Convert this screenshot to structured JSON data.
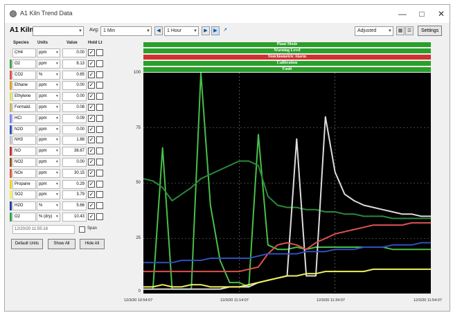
{
  "window": {
    "title": "A1 Kiln Trend Data"
  },
  "toolbar": {
    "kiln_name": "A1 Kiln",
    "avg_label": "Avg:",
    "avg_value": "1 Min",
    "range_value": "1 Hour",
    "scale_value": "Adjusted",
    "settings_label": "Settings"
  },
  "species_headers": {
    "species": "Species",
    "units": "Units",
    "value": "Value",
    "hold": "Hold Lt"
  },
  "species": [
    {
      "name": "CH4",
      "unit": "ppm",
      "value": "0.00",
      "color": "#e8e8e8",
      "checked": true
    },
    {
      "name": "O2",
      "unit": "ppm",
      "value": "8.13",
      "color": "#49a049",
      "checked": true
    },
    {
      "name": "CO2",
      "unit": "%",
      "value": "0.65",
      "color": "#e05050",
      "checked": true
    },
    {
      "name": "Ethane",
      "unit": "ppm",
      "value": "0.00",
      "color": "#e0a020",
      "checked": true
    },
    {
      "name": "Ethylene",
      "unit": "ppm",
      "value": "0.00",
      "color": "#e0e060",
      "checked": true
    },
    {
      "name": "Formald.",
      "unit": "ppm",
      "value": "0.08",
      "color": "#d0b060",
      "checked": true
    },
    {
      "name": "HCl",
      "unit": "ppm",
      "value": "0.09",
      "color": "#8080ff",
      "checked": true
    },
    {
      "name": "N2O",
      "unit": "ppm",
      "value": "0.00",
      "color": "#3050c0",
      "checked": true
    },
    {
      "name": "NH3",
      "unit": "ppm",
      "value": "1.88",
      "color": "#c0c0c0",
      "checked": true
    },
    {
      "name": "NO",
      "unit": "ppm",
      "value": "38.87",
      "color": "#c03030",
      "checked": true
    },
    {
      "name": "NO2",
      "unit": "ppm",
      "value": "0.00",
      "color": "#a05020",
      "checked": true
    },
    {
      "name": "NOx",
      "unit": "ppm",
      "value": "30.15",
      "color": "#e05a30",
      "checked": true
    },
    {
      "name": "Propane",
      "unit": "ppm",
      "value": "0.29",
      "color": "#f0d020",
      "checked": true
    },
    {
      "name": "SO2",
      "unit": "ppm",
      "value": "3.79",
      "color": "#f0f060",
      "checked": true
    },
    {
      "name": "H2O",
      "unit": "%",
      "value": "5.66",
      "color": "#2040a0",
      "checked": true
    },
    {
      "name": "O2",
      "unit": "% (dry)",
      "value": "10.43",
      "color": "#30a050",
      "checked": true
    }
  ],
  "date_field": "12/20/20 11:55:18",
  "span_label": "Span",
  "buttons": {
    "default_units": "Default Units",
    "show_all": "Show All",
    "hide_all": "Hide All"
  },
  "status_bars": [
    {
      "label": "Plant Mode",
      "color": "#2aa02a"
    },
    {
      "label": "Warning Level",
      "color": "#2aa02a"
    },
    {
      "label": "Stoichiometric Alarm",
      "color": "#d03030"
    },
    {
      "label": "Calibration",
      "color": "#2aa02a"
    },
    {
      "label": "Fault",
      "color": "#2aa02a"
    }
  ],
  "y_ticks": [
    "100",
    "75",
    "50",
    "25",
    "0"
  ],
  "x_ticks": [
    "12/3/20 10:54:07",
    "12/3/20 11:14:07",
    "12/3/20 11:34:07",
    "12/3/20 11:54:07"
  ],
  "chart_data": {
    "type": "line",
    "ylim": [
      0,
      100
    ],
    "x": [
      "10:54",
      "10:56",
      "10:58",
      "11:00",
      "11:02",
      "11:04",
      "11:06",
      "11:08",
      "11:10",
      "11:12",
      "11:14",
      "11:16",
      "11:18",
      "11:20",
      "11:22",
      "11:24",
      "11:26",
      "11:28",
      "11:30",
      "11:32",
      "11:34",
      "11:36",
      "11:38",
      "11:40",
      "11:42",
      "11:44",
      "11:46",
      "11:48",
      "11:50",
      "11:52",
      "11:54"
    ],
    "series": [
      {
        "color": "#49c049",
        "values": [
          2,
          2,
          66,
          2,
          2,
          2,
          100,
          40,
          15,
          5,
          5,
          3,
          72,
          22,
          20,
          20,
          21,
          20,
          21,
          21,
          21,
          21,
          21,
          21,
          21,
          21,
          20,
          20,
          20,
          20,
          20
        ]
      },
      {
        "color": "#2a8a3a",
        "values": [
          52,
          51,
          48,
          42,
          45,
          48,
          52,
          54,
          56,
          58,
          60,
          60,
          58,
          44,
          40,
          39,
          39,
          38,
          38,
          37,
          37,
          36,
          36,
          35,
          35,
          35,
          34,
          34,
          34,
          34,
          34
        ]
      },
      {
        "color": "#dddddd",
        "values": [
          2,
          2,
          2,
          2,
          2,
          2,
          2,
          2,
          2,
          3,
          3,
          3,
          5,
          6,
          7,
          8,
          70,
          8,
          8,
          80,
          55,
          45,
          42,
          40,
          39,
          38,
          37,
          36,
          36,
          35,
          35
        ]
      },
      {
        "color": "#e05050",
        "values": [
          10,
          10,
          10,
          10,
          10,
          10,
          10,
          10,
          10,
          10,
          10,
          11,
          12,
          18,
          22,
          23,
          22,
          20,
          23,
          25,
          27,
          28,
          29,
          30,
          31,
          31,
          31,
          31,
          32,
          32,
          32
        ]
      },
      {
        "color": "#3050c0",
        "values": [
          14,
          14,
          14,
          14,
          15,
          15,
          15,
          16,
          16,
          16,
          16,
          16,
          17,
          18,
          18,
          18,
          18,
          19,
          19,
          19,
          20,
          20,
          20,
          21,
          21,
          21,
          22,
          22,
          22,
          23,
          23
        ]
      },
      {
        "color": "#f0f060",
        "values": [
          3,
          3,
          4,
          3,
          3,
          4,
          4,
          3,
          3,
          3,
          3,
          4,
          5,
          6,
          7,
          8,
          8,
          9,
          9,
          10,
          10,
          10,
          10,
          10,
          11,
          11,
          11,
          11,
          11,
          11,
          11
        ]
      }
    ]
  }
}
